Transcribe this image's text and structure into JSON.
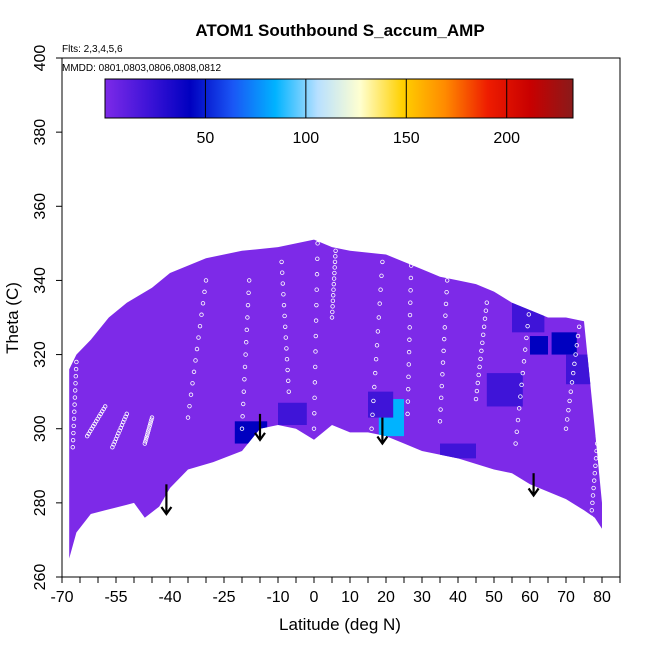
{
  "chart_data": {
    "type": "heatmap",
    "title": "ATOM1 Southbound S_accum_AMP",
    "flights_label": "Flts: 2,3,4,5,6",
    "dates_label": "MMDD: 0801,0803,0806,0808,0812",
    "xlabel": "Latitude (deg N)",
    "ylabel": "Theta (C)",
    "xlim": [
      -70,
      85
    ],
    "ylim": [
      260,
      400
    ],
    "x_ticks": [
      -70,
      -55,
      -40,
      -25,
      -10,
      0,
      10,
      20,
      30,
      40,
      50,
      60,
      70,
      80
    ],
    "x_tick_labels": [
      "-70",
      "-55",
      "-40",
      "-25",
      "-10",
      "0",
      "10",
      "20",
      "30",
      "40",
      "50",
      "60",
      "70",
      "80"
    ],
    "x_minor_ticks": [
      -65,
      -60,
      -50,
      -45,
      -35,
      -30,
      -20,
      -15,
      -5,
      5,
      15,
      25,
      35,
      45,
      55,
      65,
      75,
      85
    ],
    "y_ticks": [
      260,
      280,
      300,
      320,
      340,
      360,
      380,
      400
    ],
    "y_tick_labels": [
      "260",
      "280",
      "300",
      "320",
      "340",
      "360",
      "380",
      "400"
    ],
    "colorbar": {
      "range": [
        0,
        233
      ],
      "ticks": [
        50,
        100,
        150,
        200
      ],
      "tick_labels": [
        "50",
        "100",
        "150",
        "200"
      ],
      "colors": [
        "#7d2ae8",
        "#3f14d8",
        "#0000c0",
        "#1a56f5",
        "#00b3ff",
        "#b8e0ff",
        "#ffffd0",
        "#ffd000",
        "#ff8a00",
        "#ee1c00",
        "#c80000",
        "#8a1a1a"
      ]
    },
    "tropopause_x": [
      -68,
      -66,
      -62,
      -58,
      -50,
      -47,
      -43,
      -40,
      -35,
      -28,
      -20,
      -15,
      -10,
      -5,
      0,
      5,
      10,
      15,
      20,
      25,
      30,
      40,
      50,
      55,
      60,
      70,
      75,
      78,
      80
    ],
    "tropopause_y": [
      265,
      272,
      277,
      278,
      280,
      276,
      279,
      284,
      289,
      291,
      294,
      300,
      301,
      300,
      297,
      301,
      299,
      299,
      298,
      296,
      294,
      292,
      289,
      288,
      285,
      281,
      278,
      276,
      273
    ],
    "upper_boundary_x": [
      -68,
      -66,
      -62,
      -57,
      -52,
      -45,
      -40,
      -35,
      -30,
      -25,
      -20,
      -10,
      -5,
      0,
      5,
      10,
      20,
      25,
      30,
      35,
      40,
      45,
      50,
      55,
      60,
      65,
      70,
      75,
      78,
      80
    ],
    "upper_boundary_y": [
      316,
      320,
      324,
      330,
      334,
      338,
      342,
      344,
      346,
      347,
      348,
      349,
      350,
      351,
      349,
      348,
      347,
      345,
      343,
      341,
      340,
      339,
      337,
      334,
      332,
      330,
      330,
      329,
      300,
      280
    ],
    "regions": [
      {
        "x": [
          -22,
          -13
        ],
        "y": [
          296,
          302
        ],
        "value": 45
      },
      {
        "x": [
          -10,
          -2
        ],
        "y": [
          301,
          307
        ],
        "value": 30
      },
      {
        "x": [
          18,
          25
        ],
        "y": [
          298,
          308
        ],
        "value": 85
      },
      {
        "x": [
          15,
          22
        ],
        "y": [
          303,
          310
        ],
        "value": 25
      },
      {
        "x": [
          35,
          45
        ],
        "y": [
          292,
          296
        ],
        "value": 25
      },
      {
        "x": [
          48,
          58
        ],
        "y": [
          306,
          315
        ],
        "value": 20
      },
      {
        "x": [
          60,
          65
        ],
        "y": [
          320,
          325
        ],
        "value": 45
      },
      {
        "x": [
          66,
          73
        ],
        "y": [
          320,
          326
        ],
        "value": 40
      },
      {
        "x": [
          55,
          64
        ],
        "y": [
          326,
          334
        ],
        "value": 25
      },
      {
        "x": [
          70,
          78
        ],
        "y": [
          312,
          320
        ],
        "value": 20
      }
    ],
    "arrows": [
      {
        "x": -41,
        "y_top": 285,
        "y_bottom": 277
      },
      {
        "x": -15,
        "y_top": 304,
        "y_bottom": 297
      },
      {
        "x": 19,
        "y_top": 303,
        "y_bottom": 296
      },
      {
        "x": 61,
        "y_top": 288,
        "y_bottom": 282
      }
    ],
    "scatter_tracks": [
      {
        "x1": -67,
        "y1": 295,
        "x2": -66,
        "y2": 318
      },
      {
        "x1": -63,
        "y1": 298,
        "x2": -58,
        "y2": 306
      },
      {
        "x1": -56,
        "y1": 295,
        "x2": -52,
        "y2": 304
      },
      {
        "x1": -47,
        "y1": 296,
        "x2": -45,
        "y2": 303
      },
      {
        "x1": -35,
        "y1": 303,
        "x2": -30,
        "y2": 340
      },
      {
        "x1": -20,
        "y1": 300,
        "x2": -18,
        "y2": 340
      },
      {
        "x1": -7,
        "y1": 310,
        "x2": -9,
        "y2": 345
      },
      {
        "x1": 0,
        "y1": 300,
        "x2": 1,
        "y2": 350
      },
      {
        "x1": 5,
        "y1": 330,
        "x2": 6,
        "y2": 348
      },
      {
        "x1": 16,
        "y1": 300,
        "x2": 19,
        "y2": 345
      },
      {
        "x1": 26,
        "y1": 304,
        "x2": 27,
        "y2": 344
      },
      {
        "x1": 35,
        "y1": 302,
        "x2": 37,
        "y2": 340
      },
      {
        "x1": 45,
        "y1": 308,
        "x2": 48,
        "y2": 334
      },
      {
        "x1": 56,
        "y1": 296,
        "x2": 60,
        "y2": 334
      },
      {
        "x1": 70,
        "y1": 300,
        "x2": 74,
        "y2": 330
      },
      {
        "x1": 77,
        "y1": 276,
        "x2": 79,
        "y2": 300
      }
    ]
  }
}
